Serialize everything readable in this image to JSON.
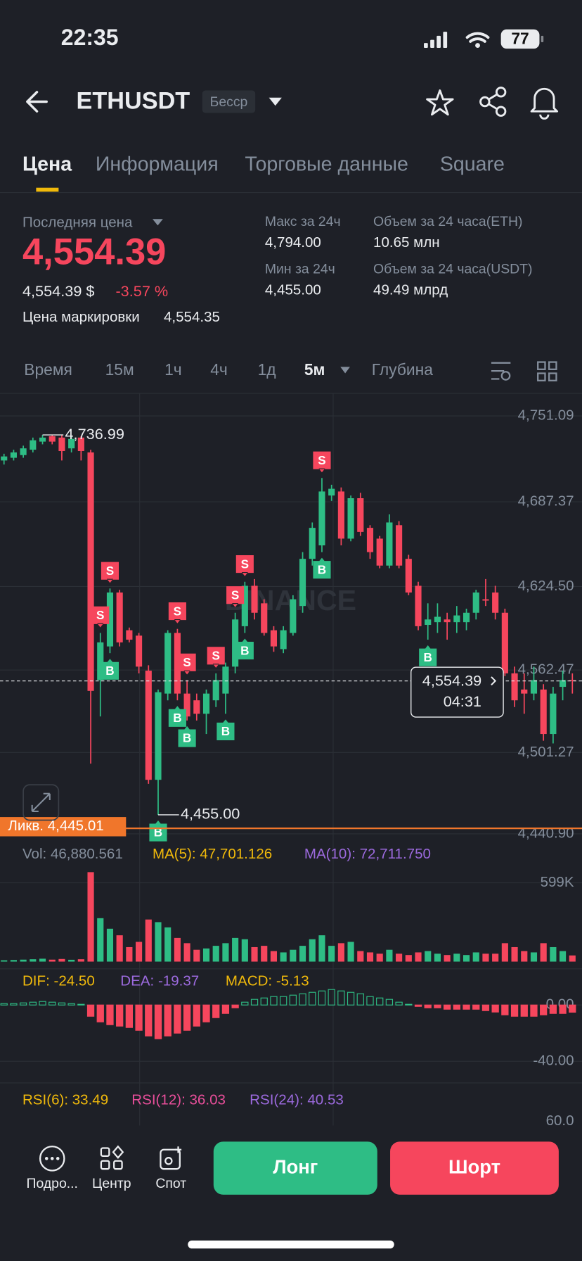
{
  "status_bar": {
    "time": "22:35",
    "battery": "77"
  },
  "header": {
    "symbol": "ETHUSDT",
    "contract": "Бесср"
  },
  "tabs": [
    "Цена",
    "Информация",
    "Торговые данные",
    "Square"
  ],
  "ticker": {
    "last_price_label": "Последняя цена",
    "last_price": "4,554.39",
    "usd_price": "4,554.39 $",
    "change": "-3.57 %",
    "mark_price_label": "Цена маркировки",
    "mark_price": "4,554.35",
    "high_label": "Макс за 24ч",
    "high": "4,794.00",
    "low_label": "Мин за 24ч",
    "low": "4,455.00",
    "vol_eth_label": "Объем за 24 часа(ETH)",
    "vol_eth": "10.65 млн",
    "vol_usdt_label": "Объем за 24 часа(USDT)",
    "vol_usdt": "49.49 млрд"
  },
  "intervals": [
    "Время",
    "15м",
    "1ч",
    "4ч",
    "1д",
    "5м",
    "Глубина"
  ],
  "chart_data": {
    "type": "candlestick",
    "watermark": "BINANCE",
    "open": [
      4718,
      4720,
      4722,
      4726,
      4732,
      4736,
      4735,
      4727,
      4735,
      4724,
      4555,
      4580,
      4620,
      4592,
      4588,
      4562,
      4481,
      4545,
      4590,
      4545,
      4540,
      4530,
      4540,
      4545,
      4565,
      4595,
      4625,
      4612,
      4592,
      4578,
      4590,
      4610,
      4645,
      4655,
      4692,
      4695,
      4660,
      4690,
      4668,
      4660,
      4640,
      4670,
      4645,
      4625,
      4596,
      4598,
      4600,
      4598,
      4598,
      4605,
      4615,
      4620,
      4605,
      4560,
      4548,
      4545,
      4548,
      4515,
      4550,
      4555
    ],
    "high": [
      4723,
      4726,
      4729,
      4735,
      4736.99,
      4737,
      4737,
      4736,
      4736,
      4726,
      4590,
      4623,
      4622,
      4594,
      4590,
      4566,
      4548,
      4592,
      4593,
      4555,
      4545,
      4548,
      4560,
      4568,
      4605,
      4628,
      4630,
      4615,
      4595,
      4595,
      4618,
      4650,
      4672,
      4705,
      4700,
      4698,
      4692,
      4694,
      4670,
      4662,
      4678,
      4673,
      4648,
      4628,
      4612,
      4612,
      4605,
      4610,
      4608,
      4622,
      4630,
      4625,
      4608,
      4565,
      4560,
      4565,
      4552,
      4550,
      4562,
      4560
    ],
    "low": [
      4715,
      4718,
      4720,
      4724,
      4730,
      4730,
      4718,
      4724,
      4718,
      4493,
      4528,
      4575,
      4580,
      4583,
      4560,
      4478,
      4455,
      4540,
      4540,
      4525,
      4525,
      4515,
      4535,
      4530,
      4560,
      4590,
      4600,
      4588,
      4576,
      4575,
      4588,
      4605,
      4640,
      4650,
      4688,
      4655,
      4658,
      4662,
      4645,
      4638,
      4638,
      4638,
      4618,
      4592,
      4585,
      4590,
      4585,
      4590,
      4592,
      4600,
      4610,
      4600,
      4558,
      4535,
      4530,
      4540,
      4510,
      4508,
      4540,
      4545
    ],
    "close": [
      4721,
      4724,
      4727,
      4733,
      4735,
      4732,
      4725,
      4734,
      4725,
      4547,
      4583,
      4620,
      4583,
      4585,
      4565,
      4481,
      4546,
      4590,
      4545,
      4528,
      4530,
      4545,
      4555,
      4565,
      4600,
      4625,
      4605,
      4590,
      4580,
      4592,
      4615,
      4645,
      4668,
      4695,
      4697,
      4660,
      4690,
      4665,
      4650,
      4640,
      4672,
      4640,
      4620,
      4595,
      4600,
      4602,
      4598,
      4603,
      4605,
      4620,
      4614,
      4605,
      4560,
      4540,
      4545,
      4555,
      4515,
      4545,
      4555,
      4554.39
    ],
    "ylim": [
      4435,
      4767
    ],
    "yticks": [
      {
        "value": 4751.09,
        "label": "4,751.09"
      },
      {
        "value": 4687.37,
        "label": "4,687.37"
      },
      {
        "value": 4624.5,
        "label": "4,624.50"
      },
      {
        "value": 4562.47,
        "label": "4,562.47"
      },
      {
        "value": 4501.27,
        "label": "4,501.27"
      },
      {
        "value": 4440.9,
        "label": "4,440.90"
      }
    ],
    "grid": true,
    "up_color": "#2ebd85",
    "down_color": "#f6465d",
    "max_mark": {
      "value": 4736.99,
      "label": "4,736.99"
    },
    "min_mark": {
      "value": 4455,
      "label": "4,455.00"
    },
    "last_price": {
      "value": 4554.39,
      "label": "4,554.39",
      "countdown": "04:31"
    },
    "liquidation": {
      "value": 4445.01,
      "label": "Ликв. 4,445.01"
    },
    "signals": [
      {
        "index": 10,
        "label": "S"
      },
      {
        "index": 11,
        "label": "S"
      },
      {
        "index": 11,
        "label": "B"
      },
      {
        "index": 16,
        "label": "B"
      },
      {
        "index": 18,
        "label": "S"
      },
      {
        "index": 18,
        "label": "B"
      },
      {
        "index": 19,
        "label": "S"
      },
      {
        "index": 19,
        "label": "B"
      },
      {
        "index": 22,
        "label": "S"
      },
      {
        "index": 23,
        "label": "B"
      },
      {
        "index": 24,
        "label": "S"
      },
      {
        "index": 25,
        "label": "S"
      },
      {
        "index": 25,
        "label": "B"
      },
      {
        "index": 33,
        "label": "S"
      },
      {
        "index": 33,
        "label": "B"
      },
      {
        "index": 44,
        "label": "B"
      }
    ],
    "volume": {
      "legend": [
        "Vol: 46,880.561",
        "MA(5): 47,701.126",
        "MA(10): 72,711.750"
      ],
      "values": [
        10000,
        12000,
        15000,
        18000,
        22000,
        15000,
        20000,
        14000,
        18000,
        680000,
        330000,
        250000,
        200000,
        110000,
        150000,
        320000,
        300000,
        260000,
        180000,
        140000,
        90000,
        100000,
        120000,
        140000,
        180000,
        170000,
        110000,
        120000,
        80000,
        70000,
        90000,
        120000,
        170000,
        200000,
        120000,
        140000,
        150000,
        80000,
        70000,
        60000,
        90000,
        60000,
        50000,
        70000,
        80000,
        60000,
        50000,
        60000,
        50000,
        70000,
        60000,
        60000,
        140000,
        110000,
        80000,
        70000,
        140000,
        110000,
        80000,
        46880.561
      ],
      "ylim": [
        0,
        678000
      ],
      "yticks": [
        {
          "value": 599000,
          "label": "599K"
        }
      ]
    },
    "macd": {
      "legend": [
        "DIF: -24.50",
        "DEA: -19.37",
        "MACD: -5.13"
      ],
      "values": [
        1,
        1,
        1.5,
        2,
        2.5,
        2,
        1.5,
        1,
        0.5,
        -8,
        -12,
        -14,
        -15,
        -16,
        -18,
        -22,
        -24,
        -22,
        -20,
        -18,
        -15,
        -12,
        -9,
        -6,
        -2,
        2,
        4,
        5,
        6,
        6,
        7,
        8,
        9,
        10,
        11,
        10,
        9,
        8,
        6,
        5,
        4,
        2,
        0.5,
        -1,
        -2,
        -2,
        -3,
        -3,
        -3,
        -3,
        -4,
        -5,
        -7,
        -8,
        -8,
        -8,
        -7,
        -6,
        -6,
        -5.13
      ],
      "ylim": [
        -54,
        23
      ],
      "yticks": [
        {
          "value": 0,
          "label": "0.00"
        },
        {
          "value": -40,
          "label": "-40.00"
        }
      ]
    },
    "rsi": {
      "legend": [
        "RSI(6): 33.49",
        "RSI(12): 36.03",
        "RSI(24): 40.53"
      ],
      "ylim": [
        55,
        80
      ],
      "yticks": [
        {
          "value": 60,
          "label": "60.0"
        }
      ]
    }
  },
  "actions": {
    "more": "Подро...",
    "center": "Центр",
    "spot": "Спот",
    "long": "Лонг",
    "short": "Шорт"
  }
}
